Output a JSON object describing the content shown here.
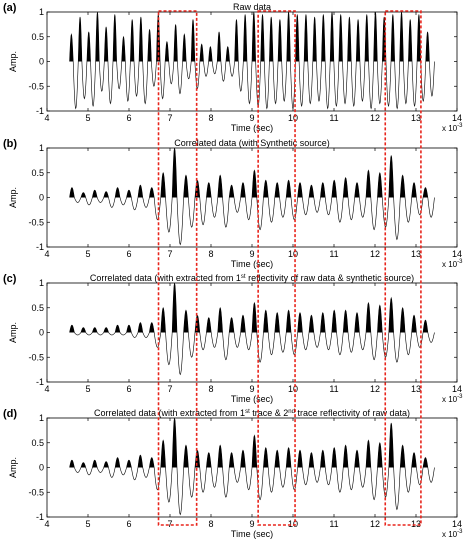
{
  "figure": {
    "highlight_color": "#e8251c",
    "trace_color": "#000000",
    "highlight_windows": [
      [
        6.72,
        7.65
      ],
      [
        9.15,
        10.05
      ],
      [
        12.25,
        13.12
      ]
    ]
  },
  "chart_data": [
    {
      "type": "line",
      "panel_label": "(a)",
      "title": "Raw data",
      "xlabel": "Time (sec)",
      "ylabel": "Amp.",
      "x_multiplier": "x 10",
      "x_multiplier_exp": "-3",
      "xlim": [
        4,
        14
      ],
      "ylim": [
        -1,
        1
      ],
      "xticks": [
        "4",
        "5",
        "6",
        "7",
        "8",
        "9",
        "10",
        "11",
        "12",
        "13",
        "14"
      ],
      "yticks": [
        "-1",
        "-0.5",
        "0",
        "0.5",
        "1"
      ],
      "x_start": 4.55,
      "x_end": 13.45,
      "n_cycles": 42,
      "pos_peaks": [
        0.55,
        0.9,
        0.6,
        1.0,
        0.7,
        0.95,
        0.5,
        0.85,
        0.9,
        0.65,
        0.95,
        0.4,
        0.75,
        0.55,
        0.85,
        0.35,
        0.3,
        0.6,
        0.3,
        0.85,
        0.95,
        1.0,
        0.95,
        0.9,
        0.85,
        1.0,
        0.95,
        0.95,
        0.9,
        0.95,
        1.0,
        0.95,
        0.9,
        0.85,
        0.95,
        1.0,
        0.9,
        0.95,
        1.0,
        0.85,
        0.95,
        0.6
      ],
      "neg_peaks": [
        -0.95,
        -0.75,
        -0.9,
        -0.6,
        -0.85,
        -0.55,
        -0.8,
        -0.7,
        -0.85,
        -0.5,
        -0.75,
        -0.45,
        -0.65,
        -0.35,
        -0.55,
        -0.3,
        -0.25,
        -0.4,
        -0.3,
        -0.6,
        -0.85,
        -0.9,
        -0.95,
        -0.85,
        -0.8,
        -0.95,
        -0.9,
        -0.85,
        -0.8,
        -0.95,
        -0.9,
        -0.85,
        -0.9,
        -0.8,
        -0.95,
        -0.85,
        -0.9,
        -0.95,
        -0.85,
        -0.9,
        -0.8,
        -0.7
      ]
    },
    {
      "type": "line",
      "panel_label": "(b)",
      "title": "Correlated data (with Synthetic source)",
      "xlabel": "Time (sec)",
      "ylabel": "Amp.",
      "x_multiplier": "x 10",
      "x_multiplier_exp": "-3",
      "xlim": [
        4,
        14
      ],
      "ylim": [
        -1,
        1
      ],
      "xticks": [
        "4",
        "5",
        "6",
        "7",
        "8",
        "9",
        "10",
        "11",
        "12",
        "13",
        "14"
      ],
      "yticks": [
        "-1",
        "-0.5",
        "0",
        "0.5",
        "1"
      ],
      "x_start": 4.55,
      "x_end": 13.45,
      "n_cycles": 32,
      "pos_peaks": [
        0.2,
        0.1,
        0.15,
        0.12,
        0.2,
        0.15,
        0.25,
        0.2,
        0.5,
        1.0,
        0.45,
        0.35,
        0.3,
        0.45,
        0.25,
        0.3,
        0.55,
        0.35,
        0.3,
        0.35,
        0.3,
        0.25,
        0.3,
        0.35,
        0.4,
        0.3,
        0.55,
        0.5,
        0.85,
        0.45,
        0.3,
        0.2
      ],
      "neg_peaks": [
        -0.1,
        -0.15,
        -0.1,
        -0.2,
        -0.15,
        -0.25,
        -0.2,
        -0.45,
        -0.7,
        -0.95,
        -0.6,
        -0.55,
        -0.4,
        -0.6,
        -0.3,
        -0.45,
        -0.65,
        -0.5,
        -0.4,
        -0.45,
        -0.35,
        -0.3,
        -0.35,
        -0.5,
        -0.45,
        -0.4,
        -0.65,
        -0.6,
        -0.85,
        -0.5,
        -0.35,
        -0.4
      ]
    },
    {
      "type": "line",
      "panel_label": "(c)",
      "title_pre": "Correlated data (with extracted from 1",
      "title_sup": "st",
      "title_post": " reflectivity of raw data & synthetic source)",
      "xlabel": "Time (sec)",
      "ylabel": "Amp.",
      "x_multiplier": "x 10",
      "x_multiplier_exp": "-3",
      "xlim": [
        4,
        14
      ],
      "ylim": [
        -1,
        1
      ],
      "xticks": [
        "4",
        "5",
        "6",
        "7",
        "8",
        "9",
        "10",
        "11",
        "12",
        "13",
        "14"
      ],
      "yticks": [
        "-1",
        "-0.5",
        "0",
        "0.5",
        "1"
      ],
      "x_start": 4.55,
      "x_end": 13.45,
      "n_cycles": 32,
      "pos_peaks": [
        0.15,
        0.1,
        0.1,
        0.1,
        0.15,
        0.15,
        0.2,
        0.2,
        0.5,
        1.0,
        0.45,
        0.35,
        0.3,
        0.5,
        0.3,
        0.35,
        0.6,
        0.45,
        0.4,
        0.45,
        0.4,
        0.35,
        0.4,
        0.45,
        0.45,
        0.4,
        0.6,
        0.55,
        0.7,
        0.5,
        0.35,
        0.25
      ],
      "neg_peaks": [
        -0.05,
        -0.05,
        -0.05,
        -0.05,
        -0.05,
        -0.1,
        -0.1,
        -0.3,
        -0.65,
        -0.85,
        -0.5,
        -0.35,
        -0.3,
        -0.55,
        -0.3,
        -0.35,
        -0.6,
        -0.45,
        -0.4,
        -0.45,
        -0.35,
        -0.3,
        -0.35,
        -0.45,
        -0.4,
        -0.35,
        -0.55,
        -0.5,
        -0.6,
        -0.45,
        -0.3,
        -0.2
      ]
    },
    {
      "type": "line",
      "panel_label": "(d)",
      "title_pre": "Correlated data (with extracted from 1",
      "title_sup": "st",
      "title_mid": " trace & 2",
      "title_sup2": "nd",
      "title_post": " trace reflectivity of raw data)",
      "xlabel": "Time (sec)",
      "ylabel": "Amp.",
      "x_multiplier": "x 10",
      "x_multiplier_exp": "-3",
      "xlim": [
        4,
        14
      ],
      "ylim": [
        -1,
        1
      ],
      "xticks": [
        "4",
        "5",
        "6",
        "7",
        "8",
        "9",
        "10",
        "11",
        "12",
        "13",
        "14"
      ],
      "yticks": [
        "-1",
        "-0.5",
        "0",
        "0.5",
        "1"
      ],
      "x_start": 4.55,
      "x_end": 13.45,
      "n_cycles": 32,
      "pos_peaks": [
        0.15,
        0.1,
        0.15,
        0.12,
        0.2,
        0.15,
        0.25,
        0.2,
        0.55,
        1.0,
        0.45,
        0.35,
        0.3,
        0.45,
        0.3,
        0.35,
        0.65,
        0.4,
        0.35,
        0.4,
        0.35,
        0.3,
        0.35,
        0.4,
        0.45,
        0.35,
        0.55,
        0.5,
        0.9,
        0.45,
        0.3,
        0.2
      ],
      "neg_peaks": [
        -0.1,
        -0.15,
        -0.1,
        -0.2,
        -0.15,
        -0.25,
        -0.2,
        -0.45,
        -0.7,
        -0.95,
        -0.6,
        -0.5,
        -0.4,
        -0.6,
        -0.3,
        -0.45,
        -0.65,
        -0.5,
        -0.4,
        -0.45,
        -0.35,
        -0.3,
        -0.35,
        -0.5,
        -0.45,
        -0.4,
        -0.65,
        -0.6,
        -0.85,
        -0.5,
        -0.35,
        -0.3
      ]
    }
  ]
}
